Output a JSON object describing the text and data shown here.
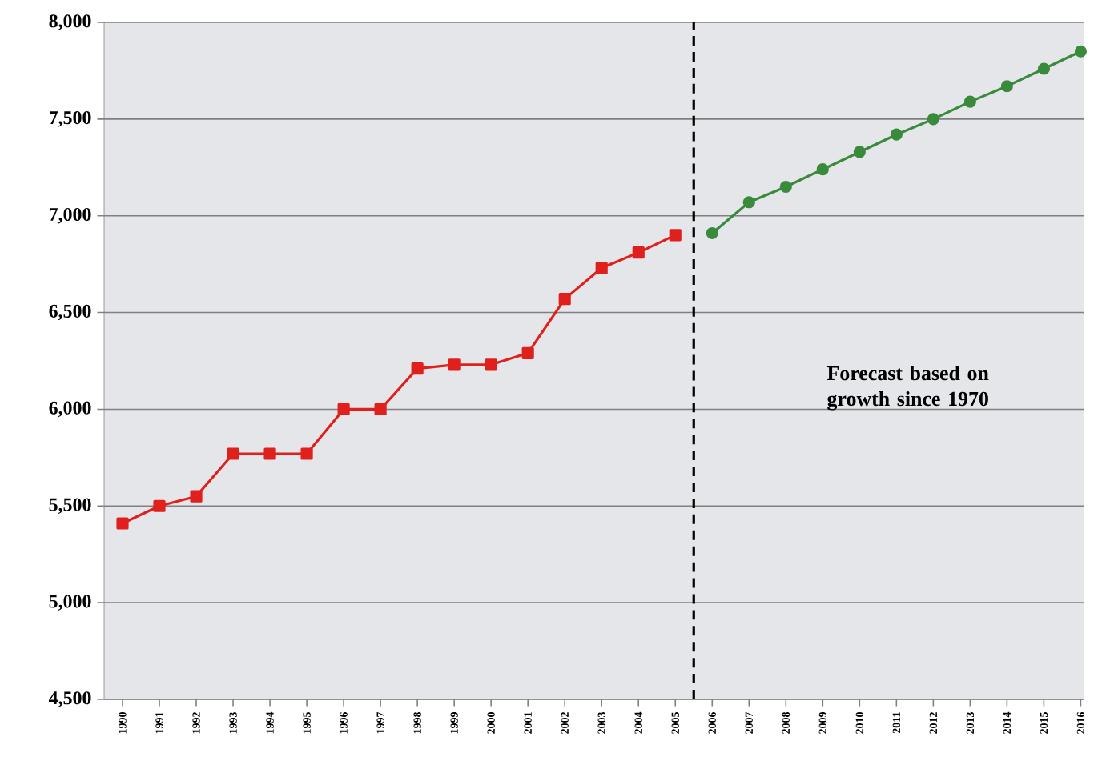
{
  "chart_data": {
    "type": "line",
    "x": [
      1990,
      1991,
      1992,
      1993,
      1994,
      1995,
      1996,
      1997,
      1998,
      1999,
      2000,
      2001,
      2002,
      2003,
      2004,
      2005,
      2006,
      2007,
      2008,
      2009,
      2010,
      2011,
      2012,
      2013,
      2014,
      2015,
      2016
    ],
    "series": [
      {
        "color": "#e0201c",
        "marker": "square",
        "values": [
          5410,
          5500,
          5550,
          5770,
          5770,
          5770,
          6000,
          6000,
          6210,
          6230,
          6230,
          6290,
          6570,
          6730,
          6810,
          6900,
          null,
          null,
          null,
          null,
          null,
          null,
          null,
          null,
          null,
          null,
          null
        ]
      },
      {
        "color": "#3a8a3c",
        "marker": "circle",
        "values": [
          null,
          null,
          null,
          null,
          null,
          null,
          null,
          null,
          null,
          null,
          null,
          null,
          null,
          null,
          null,
          null,
          6910,
          7070,
          7150,
          7240,
          7330,
          7420,
          7500,
          7590,
          7670,
          7760,
          7850
        ]
      }
    ],
    "xlim": [
      1989.5,
      2016.1
    ],
    "xticks": [
      1990,
      1991,
      1992,
      1993,
      1994,
      1995,
      1996,
      1997,
      1998,
      1999,
      2000,
      2001,
      2002,
      2003,
      2004,
      2005,
      2006,
      2007,
      2008,
      2009,
      2010,
      2011,
      2012,
      2013,
      2014,
      2015,
      2016
    ],
    "ylim": [
      4500,
      8000
    ],
    "yticks": [
      {
        "value": 4500,
        "label": "4,500"
      },
      {
        "value": 5000,
        "label": "5,000"
      },
      {
        "value": 5500,
        "label": "5,500"
      },
      {
        "value": 6000,
        "label": "6,000"
      },
      {
        "value": 6500,
        "label": "6,500"
      },
      {
        "value": 7000,
        "label": "7,000"
      },
      {
        "value": 7500,
        "label": "7,500"
      },
      {
        "value": 8000,
        "label": "8,000"
      }
    ],
    "grid": "y",
    "line_style": "solid",
    "ref_lines": [
      {
        "axis": "x",
        "value": 2005.5,
        "color": "#000000",
        "line_style": "dashed"
      }
    ],
    "annotations": [
      "Forecast based on growth since 1970"
    ]
  }
}
